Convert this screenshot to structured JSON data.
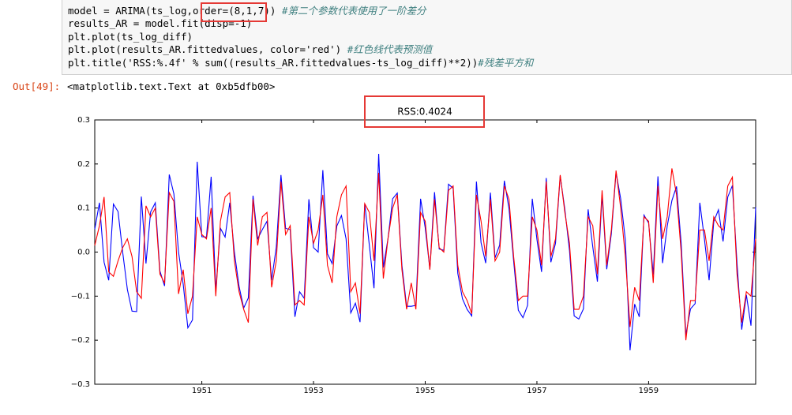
{
  "code": {
    "lines": [
      {
        "code": "model = ARIMA(ts_log,order=(8,1,7)) ",
        "comment": "#第二个参数代表使用了一阶差分"
      },
      {
        "code": "results_AR = model.fit(disp=-1)",
        "comment": null
      },
      {
        "code": "plt.plot(ts_log_diff)",
        "comment": null
      },
      {
        "code": "plt.plot(results_AR.fittedvalues, color='red') ",
        "comment": "#红色线代表预测值"
      },
      {
        "code": "plt.title('RSS:%.4f' % sum((results_AR.fittedvalues-ts_log_diff)**2))",
        "comment": "#残差平方和"
      }
    ]
  },
  "output": {
    "prompt": "Out[49]:",
    "text": "<matplotlib.text.Text at 0xb5dfb00>"
  },
  "chart_data": {
    "type": "line",
    "title": "RSS:0.4024",
    "x": [
      1949.083,
      1949.167,
      1949.25,
      1949.333,
      1949.417,
      1949.5,
      1949.583,
      1949.667,
      1949.75,
      1949.833,
      1949.917,
      1950,
      1950.083,
      1950.167,
      1950.25,
      1950.333,
      1950.417,
      1950.5,
      1950.583,
      1950.667,
      1950.75,
      1950.833,
      1950.917,
      1951,
      1951.083,
      1951.167,
      1951.25,
      1951.333,
      1951.417,
      1951.5,
      1951.583,
      1951.667,
      1951.75,
      1951.833,
      1951.917,
      1952,
      1952.083,
      1952.167,
      1952.25,
      1952.333,
      1952.417,
      1952.5,
      1952.583,
      1952.667,
      1952.75,
      1952.833,
      1952.917,
      1953,
      1953.083,
      1953.167,
      1953.25,
      1953.333,
      1953.417,
      1953.5,
      1953.583,
      1953.667,
      1953.75,
      1953.833,
      1953.917,
      1954,
      1954.083,
      1954.167,
      1954.25,
      1954.333,
      1954.417,
      1954.5,
      1954.583,
      1954.667,
      1954.75,
      1954.833,
      1954.917,
      1955,
      1955.083,
      1955.167,
      1955.25,
      1955.333,
      1955.417,
      1955.5,
      1955.583,
      1955.667,
      1955.75,
      1955.833,
      1955.917,
      1956,
      1956.083,
      1956.167,
      1956.25,
      1956.333,
      1956.417,
      1956.5,
      1956.583,
      1956.667,
      1956.75,
      1956.833,
      1956.917,
      1957,
      1957.083,
      1957.167,
      1957.25,
      1957.333,
      1957.417,
      1957.5,
      1957.583,
      1957.667,
      1957.75,
      1957.833,
      1957.917,
      1958,
      1958.083,
      1958.167,
      1958.25,
      1958.333,
      1958.417,
      1958.5,
      1958.583,
      1958.667,
      1958.75,
      1958.833,
      1958.917,
      1959,
      1959.083,
      1959.167,
      1959.25,
      1959.333,
      1959.417,
      1959.5,
      1959.583,
      1959.667,
      1959.75,
      1959.833,
      1959.917,
      1960,
      1960.083,
      1960.167,
      1960.25,
      1960.333,
      1960.417,
      1960.5,
      1960.583,
      1960.667,
      1960.75,
      1960.833,
      1960.917
    ],
    "series": [
      {
        "color": "#0000ff",
        "values": [
          0.052,
          0.112,
          -0.023,
          -0.064,
          0.109,
          0.092,
          0,
          -0.085,
          -0.134,
          -0.135,
          0.126,
          -0.026,
          0.091,
          0.112,
          -0.043,
          -0.077,
          0.176,
          0.132,
          0,
          -0.073,
          -0.172,
          -0.154,
          0.205,
          0.035,
          0.034,
          0.171,
          -0.088,
          0.054,
          0.034,
          0.112,
          0,
          -0.078,
          -0.127,
          -0.104,
          0.128,
          0.03,
          0.051,
          0.07,
          -0.064,
          0.011,
          0.175,
          0.054,
          0.051,
          -0.147,
          -0.09,
          -0.105,
          0.12,
          0.01,
          0,
          0.186,
          -0.004,
          -0.026,
          0.059,
          0.083,
          0.03,
          -0.138,
          -0.116,
          -0.159,
          0.11,
          0.015,
          -0.082,
          0.223,
          -0.035,
          0.03,
          0.121,
          0.134,
          -0.03,
          -0.123,
          -0.123,
          -0.121,
          0.121,
          0.055,
          -0.038,
          0.136,
          0.007,
          0.004,
          0.154,
          0.145,
          -0.048,
          -0.106,
          -0.13,
          -0.145,
          0.16,
          0.021,
          -0.025,
          0.135,
          -0.013,
          0.016,
          0.162,
          0.099,
          -0.02,
          -0.132,
          -0.149,
          -0.121,
          0.121,
          0.029,
          -0.045,
          0.168,
          -0.023,
          0.02,
          0.173,
          0.097,
          0.004,
          -0.145,
          -0.152,
          -0.129,
          0.097,
          0.012,
          -0.067,
          0.13,
          -0.039,
          0.042,
          0.181,
          0.121,
          0.028,
          -0.223,
          -0.118,
          -0.147,
          0.084,
          0.066,
          -0.051,
          0.172,
          -0.025,
          0.059,
          0.117,
          0.149,
          0.02,
          -0.188,
          -0.129,
          -0.117,
          0.112,
          0.029,
          -0.064,
          0.069,
          0.096,
          0.024,
          0.125,
          0.151,
          -0.026,
          -0.176,
          -0.097,
          -0.167,
          0.102
        ]
      },
      {
        "color": "#ff0000",
        "values": [
          0.015,
          0.06,
          0.125,
          -0.045,
          -0.055,
          -0.02,
          0.01,
          0.03,
          -0.01,
          -0.09,
          -0.105,
          0.105,
          0.08,
          0.1,
          -0.05,
          -0.07,
          0.135,
          0.115,
          -0.095,
          -0.04,
          -0.14,
          -0.1,
          0.08,
          0.04,
          0.03,
          0.1,
          -0.1,
          0.07,
          0.125,
          0.135,
          -0.02,
          -0.09,
          -0.13,
          -0.16,
          0.12,
          0.015,
          0.08,
          0.09,
          -0.08,
          -0.02,
          0.16,
          0.04,
          0.06,
          -0.12,
          -0.11,
          -0.12,
          0.08,
          0.02,
          0.05,
          0.13,
          -0.03,
          -0.07,
          0.08,
          0.13,
          0.15,
          -0.09,
          -0.07,
          -0.14,
          0.11,
          0.09,
          -0.02,
          0.18,
          -0.06,
          0.03,
          0.1,
          0.13,
          -0.04,
          -0.13,
          -0.07,
          -0.13,
          0.09,
          0.07,
          -0.04,
          0.12,
          0.01,
          0.0,
          0.14,
          0.15,
          -0.03,
          -0.09,
          -0.11,
          -0.14,
          0.13,
          0.07,
          -0.01,
          0.12,
          -0.02,
          0.0,
          0.15,
          0.12,
          -0.01,
          -0.11,
          -0.1,
          -0.1,
          0.08,
          0.05,
          -0.03,
          0.16,
          -0.01,
          0.03,
          0.175,
          0.09,
          0.02,
          -0.13,
          -0.13,
          -0.1,
          0.08,
          0.06,
          -0.05,
          0.14,
          -0.03,
          0.05,
          0.185,
          0.1,
          -0.01,
          -0.17,
          -0.08,
          -0.11,
          0.08,
          0.07,
          -0.07,
          0.15,
          0.03,
          0.08,
          0.19,
          0.13,
          0.0,
          -0.2,
          -0.11,
          -0.11,
          0.05,
          0.05,
          -0.02,
          0.08,
          0.06,
          0.05,
          0.15,
          0.17,
          -0.05,
          -0.16,
          -0.09,
          -0.1,
          0.03
        ]
      }
    ],
    "xlim": [
      1949.083,
      1960.917
    ],
    "xticks": [
      1951,
      1953,
      1955,
      1957,
      1959
    ],
    "ylim": [
      -0.3,
      0.3
    ],
    "yticks": [
      {
        "value": -0.3,
        "label": "−0.3"
      },
      {
        "value": -0.2,
        "label": "−0.2"
      },
      {
        "value": -0.1,
        "label": "−0.1"
      },
      {
        "value": 0,
        "label": "0.0"
      },
      0.1,
      0.2,
      0.3
    ]
  }
}
